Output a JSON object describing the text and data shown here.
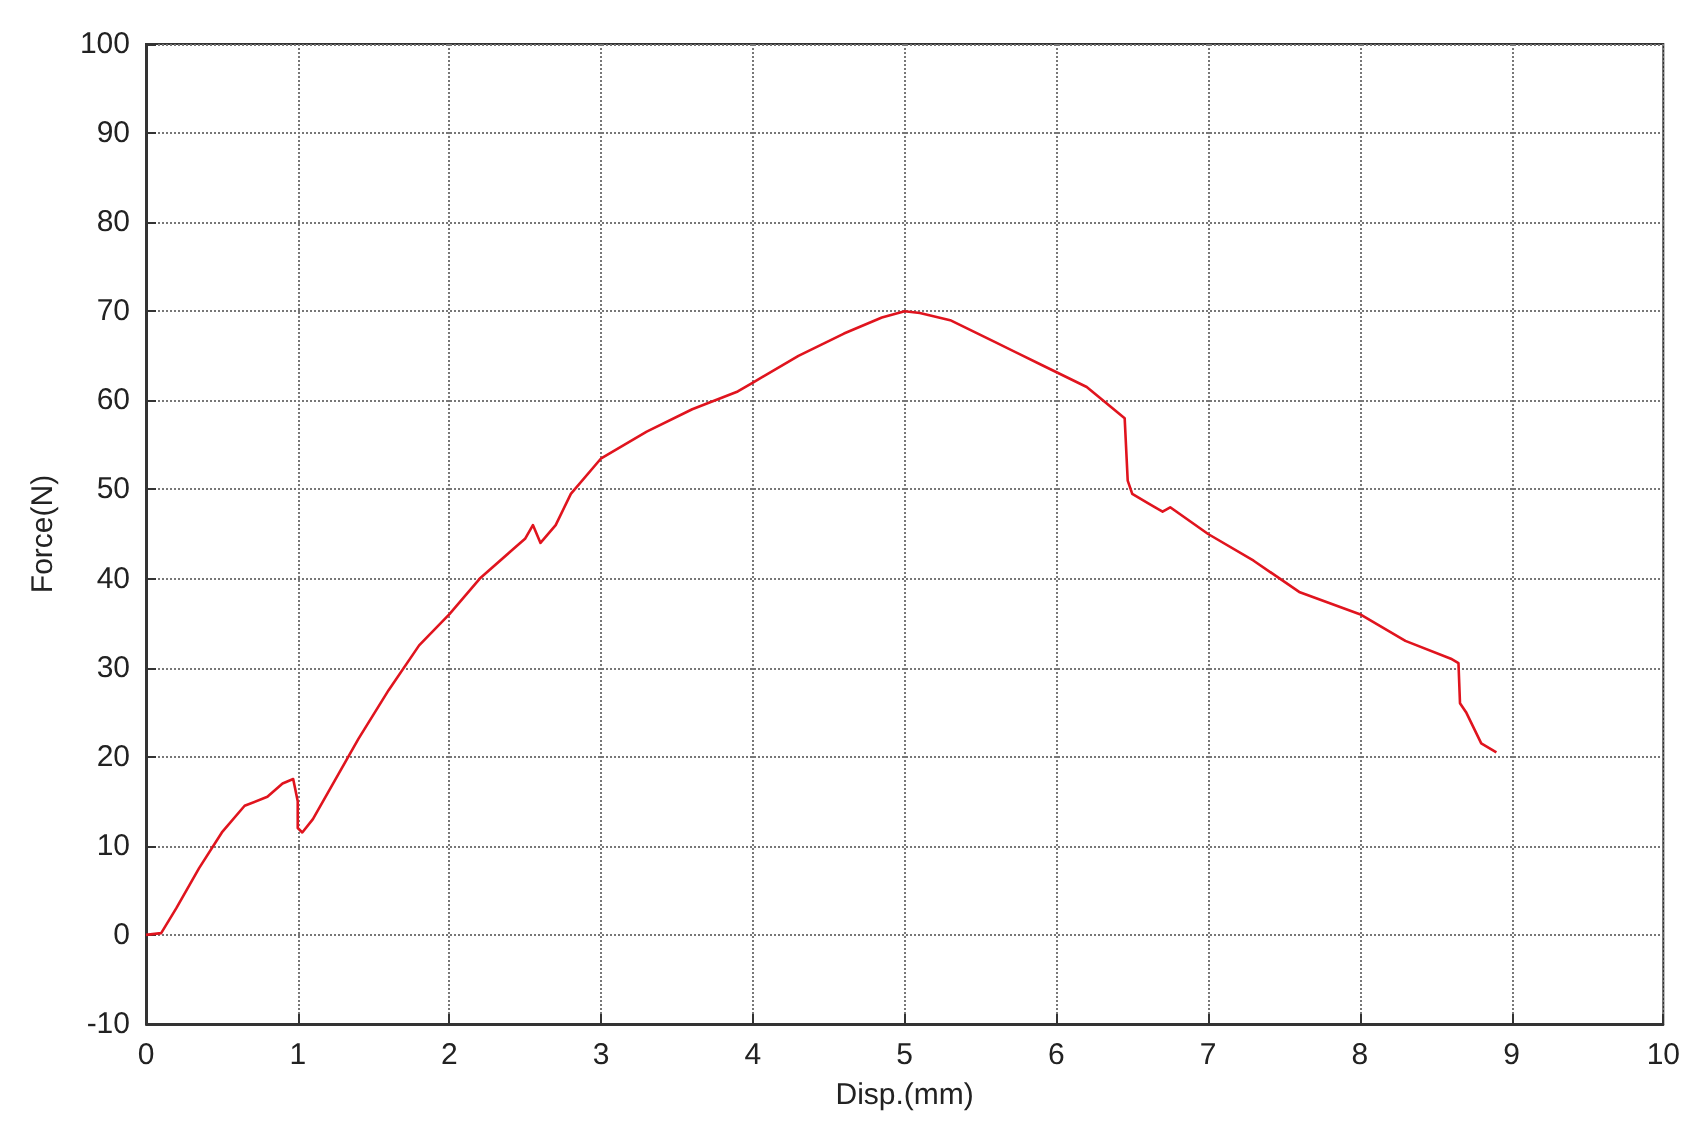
{
  "chart_data": {
    "type": "line",
    "xlabel": "Disp.(mm)",
    "ylabel": "Force(N)",
    "x": [
      0,
      0.1,
      0.2,
      0.35,
      0.5,
      0.65,
      0.8,
      0.9,
      0.97,
      1.0,
      1.0,
      1.03,
      1.1,
      1.2,
      1.4,
      1.6,
      1.8,
      2.0,
      2.2,
      2.4,
      2.5,
      2.55,
      2.6,
      2.7,
      2.8,
      3.0,
      3.3,
      3.6,
      3.9,
      4.0,
      4.3,
      4.6,
      4.85,
      5.0,
      5.1,
      5.3,
      5.6,
      5.9,
      6.2,
      6.45,
      6.47,
      6.5,
      6.6,
      6.7,
      6.75,
      7.0,
      7.3,
      7.6,
      8.0,
      8.3,
      8.6,
      8.65,
      8.66,
      8.7,
      8.8,
      8.9
    ],
    "series": [
      {
        "color": "#e0141e",
        "values": [
          0,
          0.2,
          3,
          7.5,
          11.5,
          14.5,
          15.5,
          17,
          17.5,
          15,
          12,
          11.5,
          13,
          16,
          22,
          27.5,
          32.5,
          36,
          40,
          43,
          44.5,
          46,
          44,
          46,
          49.5,
          53.5,
          56.5,
          59,
          61,
          62,
          65,
          67.5,
          69.3,
          70,
          69.8,
          69,
          66.5,
          64,
          61.5,
          58,
          51,
          49.5,
          48.5,
          47.5,
          48,
          45,
          42,
          38.5,
          36,
          33,
          31,
          30.5,
          26,
          25,
          21.5,
          20.5
        ]
      }
    ],
    "xlim": [
      0,
      10
    ],
    "xticks": [
      0,
      1,
      2,
      3,
      4,
      5,
      6,
      7,
      8,
      9,
      10
    ],
    "ylim": [
      -10,
      100
    ],
    "yticks": [
      -10,
      0,
      10,
      20,
      30,
      40,
      50,
      60,
      70,
      80,
      90,
      100
    ],
    "grid": true,
    "marker": "none",
    "line_style": "solid"
  }
}
